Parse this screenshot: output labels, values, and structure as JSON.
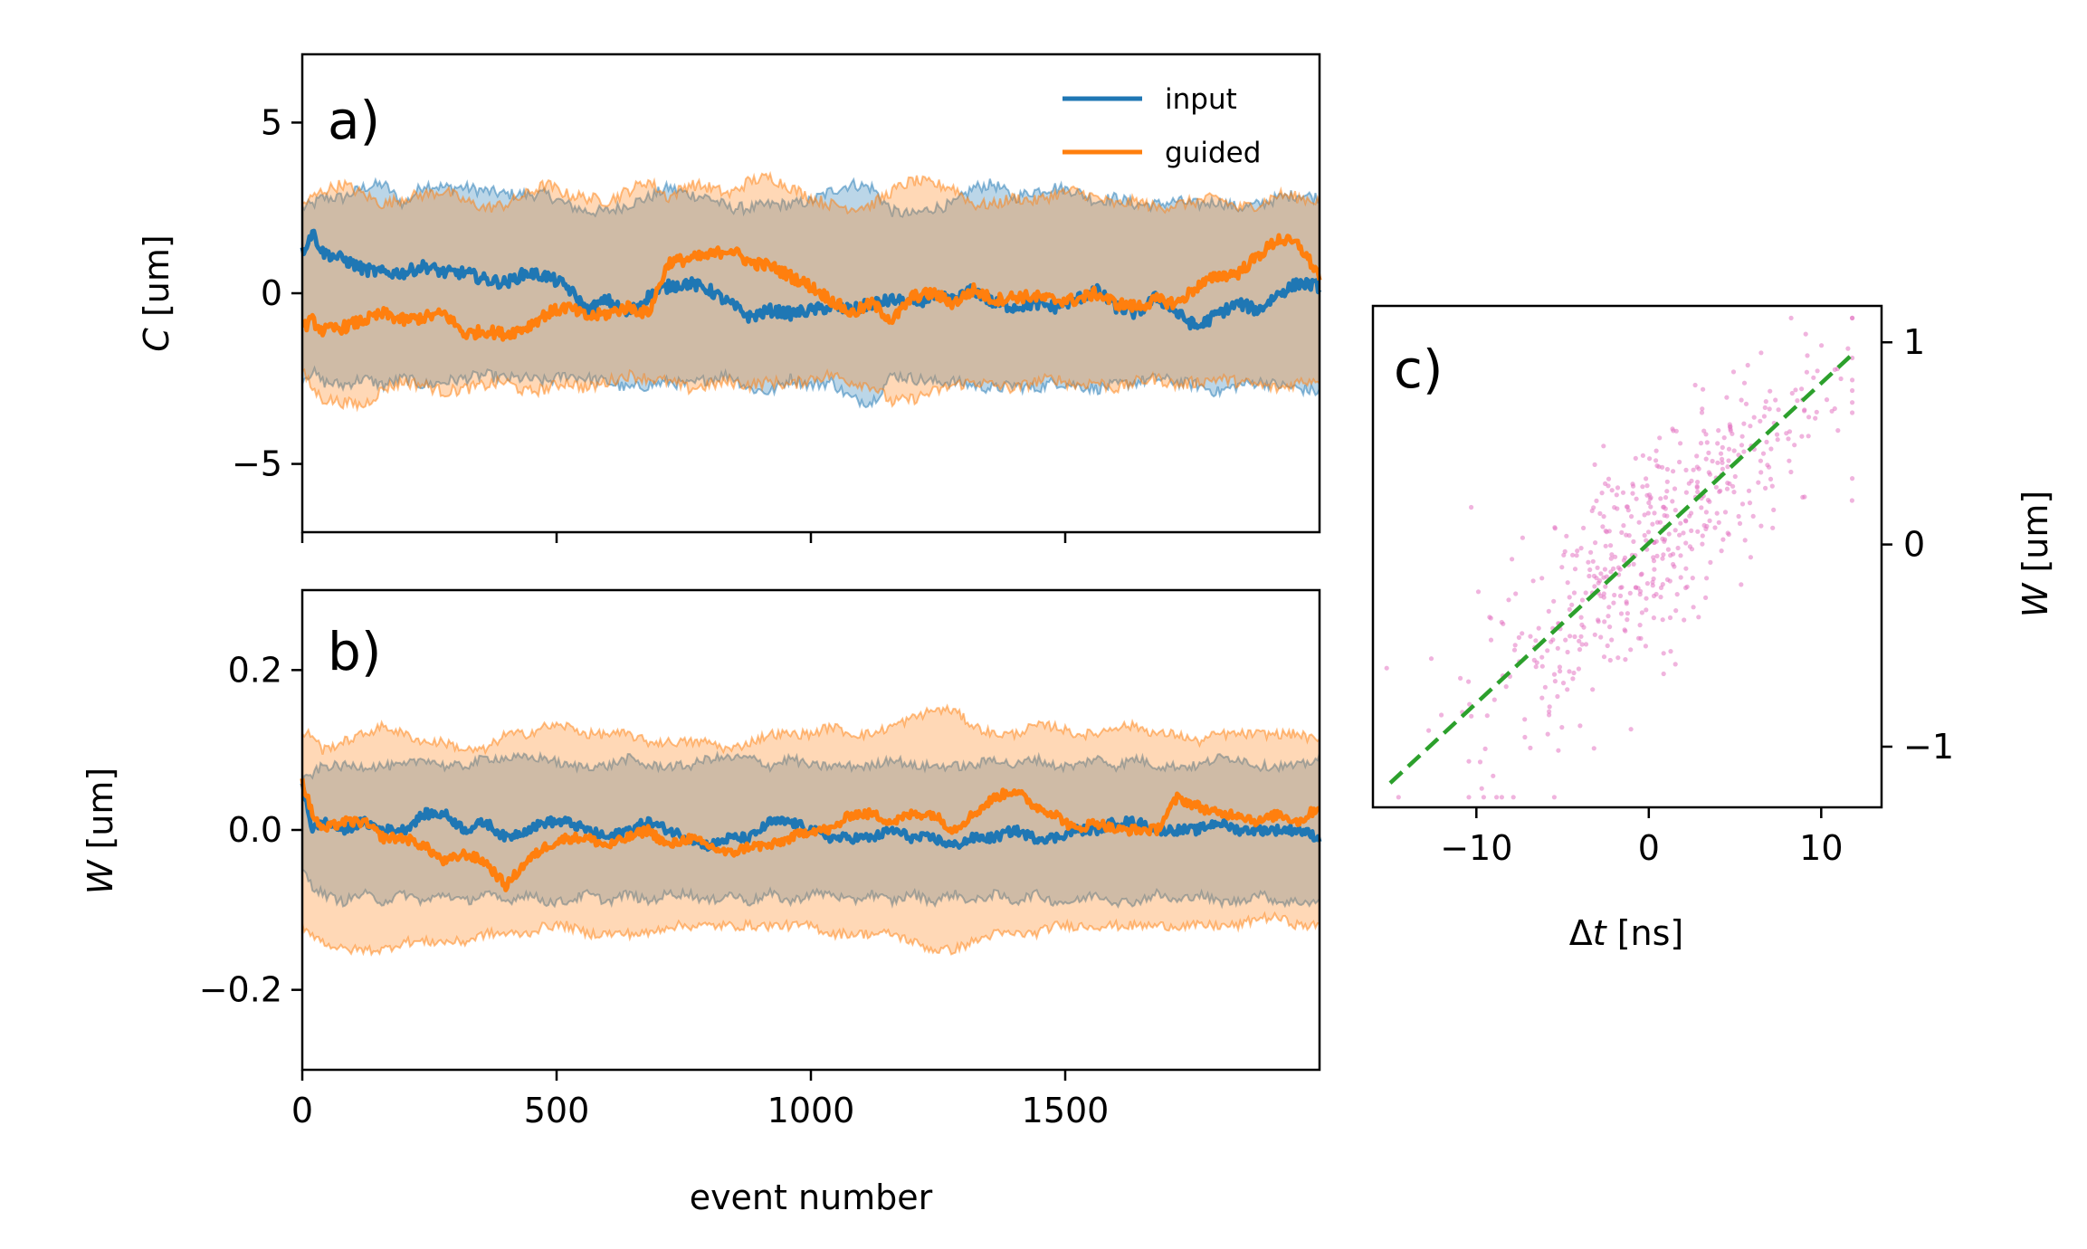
{
  "chart_data": [
    {
      "id": "a",
      "panel_label": "a)",
      "type": "line",
      "ylabel_italic": "C",
      "ylabel_unit": " [um]",
      "xlim": [
        0,
        2000
      ],
      "ylim": [
        -7,
        7
      ],
      "yticks": [
        -5,
        0,
        5
      ],
      "ytick_labels": [
        "−5",
        "0",
        "5"
      ],
      "xticks": [
        0,
        500,
        1000,
        1500
      ],
      "legend": [
        "input",
        "guided"
      ],
      "series": [
        {
          "name": "input",
          "color": "#1f77b4",
          "x": [
            0,
            20,
            40,
            80,
            120,
            160,
            200,
            240,
            280,
            320,
            360,
            400,
            440,
            480,
            520,
            560,
            600,
            640,
            680,
            720,
            760,
            800,
            840,
            880,
            920,
            960,
            1000,
            1040,
            1080,
            1120,
            1160,
            1200,
            1240,
            1280,
            1320,
            1360,
            1400,
            1440,
            1480,
            1520,
            1560,
            1600,
            1640,
            1680,
            1720,
            1760,
            1800,
            1840,
            1880,
            1920,
            1960,
            2000
          ],
          "mean": [
            1.2,
            1.8,
            1.2,
            1.0,
            0.7,
            0.6,
            0.6,
            0.8,
            0.6,
            0.6,
            0.4,
            0.3,
            0.6,
            0.5,
            0.2,
            -0.5,
            -0.2,
            -0.6,
            -0.1,
            0.2,
            0.3,
            0.1,
            -0.3,
            -0.7,
            -0.5,
            -0.6,
            -0.5,
            -0.4,
            -0.5,
            -0.3,
            -0.2,
            -0.3,
            -0.1,
            -0.2,
            0.1,
            -0.3,
            -0.4,
            -0.3,
            -0.4,
            -0.2,
            0.1,
            -0.4,
            -0.6,
            -0.1,
            -0.6,
            -1.0,
            -0.6,
            -0.3,
            -0.5,
            0.0,
            0.3,
            0.2
          ],
          "upper": [
            2.5,
            2.6,
            2.8,
            2.8,
            3.1,
            3.2,
            2.6,
            3.2,
            3.1,
            3.1,
            3.0,
            2.9,
            2.9,
            2.9,
            2.6,
            2.4,
            2.4,
            2.6,
            2.8,
            3.1,
            2.9,
            2.8,
            2.5,
            2.5,
            2.6,
            2.6,
            2.7,
            3.0,
            3.2,
            3.1,
            2.4,
            2.3,
            2.5,
            2.6,
            3.1,
            3.2,
            2.8,
            3.0,
            3.1,
            3.0,
            2.7,
            2.8,
            2.6,
            2.6,
            2.7,
            2.6,
            2.7,
            2.5,
            2.6,
            2.8,
            2.9,
            2.8
          ],
          "lower": [
            -2.5,
            -2.3,
            -2.6,
            -2.7,
            -2.5,
            -2.7,
            -2.5,
            -2.7,
            -2.6,
            -2.5,
            -2.4,
            -2.5,
            -2.5,
            -2.6,
            -2.4,
            -2.5,
            -2.6,
            -2.8,
            -2.7,
            -2.6,
            -2.7,
            -2.5,
            -2.4,
            -2.8,
            -2.9,
            -2.5,
            -2.7,
            -2.6,
            -3.1,
            -3.2,
            -2.4,
            -2.5,
            -2.6,
            -2.6,
            -2.7,
            -2.8,
            -2.7,
            -2.8,
            -2.6,
            -2.7,
            -2.8,
            -2.7,
            -2.6,
            -2.5,
            -2.6,
            -2.7,
            -2.9,
            -2.7,
            -2.6,
            -2.7,
            -2.8,
            -2.9
          ]
        },
        {
          "name": "guided",
          "color": "#ff7f0e",
          "x": [
            0,
            20,
            40,
            80,
            120,
            160,
            200,
            240,
            280,
            320,
            360,
            400,
            440,
            480,
            520,
            560,
            600,
            640,
            680,
            720,
            760,
            800,
            840,
            880,
            920,
            960,
            1000,
            1040,
            1080,
            1120,
            1160,
            1200,
            1240,
            1280,
            1320,
            1360,
            1400,
            1440,
            1480,
            1520,
            1560,
            1600,
            1640,
            1680,
            1720,
            1760,
            1800,
            1840,
            1880,
            1920,
            1960,
            2000
          ],
          "mean": [
            -1.0,
            -0.8,
            -1.1,
            -1.0,
            -0.8,
            -0.6,
            -0.8,
            -0.7,
            -0.6,
            -1.2,
            -1.1,
            -1.2,
            -1.0,
            -0.6,
            -0.4,
            -0.7,
            -0.6,
            -0.4,
            -0.6,
            0.9,
            1.0,
            1.1,
            1.3,
            0.9,
            0.8,
            0.5,
            0.2,
            -0.2,
            -0.6,
            -0.3,
            -0.8,
            -0.1,
            0.0,
            -0.3,
            0.1,
            -0.2,
            -0.1,
            -0.1,
            -0.2,
            -0.2,
            0.0,
            -0.3,
            -0.4,
            -0.2,
            -0.3,
            0.2,
            0.5,
            0.6,
            1.1,
            1.6,
            1.4,
            0.5
          ],
          "upper": [
            2.6,
            2.8,
            3.0,
            3.2,
            2.9,
            2.6,
            2.8,
            2.9,
            3.0,
            2.7,
            2.5,
            2.6,
            2.9,
            3.2,
            2.9,
            2.8,
            2.7,
            3.0,
            3.3,
            2.8,
            3.2,
            3.1,
            2.9,
            3.3,
            3.4,
            3.1,
            2.8,
            2.6,
            2.5,
            2.6,
            3.0,
            3.3,
            3.2,
            3.1,
            2.6,
            2.6,
            2.8,
            2.7,
            2.9,
            3.0,
            2.8,
            2.6,
            2.7,
            2.5,
            2.6,
            2.7,
            2.8,
            2.5,
            2.6,
            2.9,
            2.8,
            2.7
          ],
          "lower": [
            -2.3,
            -2.8,
            -3.1,
            -3.2,
            -3.3,
            -2.8,
            -2.6,
            -2.7,
            -2.9,
            -2.8,
            -2.7,
            -2.6,
            -2.9,
            -2.8,
            -2.6,
            -2.8,
            -2.6,
            -2.4,
            -2.5,
            -2.6,
            -2.8,
            -2.7,
            -2.6,
            -2.7,
            -2.6,
            -2.7,
            -2.5,
            -2.4,
            -2.6,
            -2.7,
            -3.2,
            -3.1,
            -2.9,
            -2.7,
            -2.6,
            -2.7,
            -2.8,
            -2.6,
            -2.5,
            -2.7,
            -2.6,
            -2.8,
            -2.6,
            -2.5,
            -2.7,
            -2.6,
            -2.5,
            -2.6,
            -2.7,
            -2.8,
            -2.6,
            -2.5
          ]
        }
      ]
    },
    {
      "id": "b",
      "panel_label": "b)",
      "type": "line",
      "ylabel_italic": "W",
      "ylabel_unit": " [um]",
      "xlabel": "event number",
      "xlim": [
        0,
        2000
      ],
      "ylim": [
        -0.3,
        0.3
      ],
      "yticks": [
        -0.2,
        0.0,
        0.2
      ],
      "ytick_labels": [
        "−0.2",
        "0.0",
        "0.2"
      ],
      "xticks": [
        0,
        500,
        1000,
        1500
      ],
      "xtick_labels": [
        "0",
        "500",
        "1000",
        "1500"
      ],
      "series": [
        {
          "name": "input",
          "color": "#1f77b4",
          "x": [
            0,
            20,
            40,
            80,
            120,
            160,
            200,
            240,
            280,
            320,
            360,
            400,
            440,
            480,
            520,
            560,
            600,
            640,
            680,
            720,
            760,
            800,
            840,
            880,
            920,
            960,
            1000,
            1040,
            1080,
            1120,
            1160,
            1200,
            1240,
            1280,
            1320,
            1360,
            1400,
            1440,
            1480,
            1520,
            1560,
            1600,
            1640,
            1680,
            1720,
            1760,
            1800,
            1840,
            1880,
            1920,
            1960,
            2000
          ],
          "mean": [
            0.06,
            0.0,
            0.01,
            0.0,
            0.01,
            0.0,
            0.0,
            0.02,
            0.02,
            0.0,
            0.01,
            -0.01,
            0.0,
            0.01,
            0.01,
            0.0,
            -0.01,
            0.0,
            0.01,
            0.0,
            -0.01,
            -0.02,
            -0.01,
            -0.01,
            0.01,
            0.01,
            0.0,
            -0.01,
            -0.01,
            -0.01,
            0.0,
            -0.01,
            -0.01,
            -0.02,
            -0.01,
            -0.01,
            0.0,
            -0.01,
            -0.01,
            0.0,
            0.0,
            0.01,
            0.01,
            0.0,
            0.0,
            0.0,
            0.01,
            0.0,
            0.0,
            0.0,
            0.0,
            -0.01
          ],
          "upper": [
            0.06,
            0.07,
            0.08,
            0.08,
            0.08,
            0.08,
            0.08,
            0.09,
            0.08,
            0.08,
            0.09,
            0.09,
            0.09,
            0.09,
            0.08,
            0.08,
            0.08,
            0.09,
            0.08,
            0.08,
            0.08,
            0.09,
            0.09,
            0.09,
            0.08,
            0.09,
            0.08,
            0.08,
            0.08,
            0.08,
            0.09,
            0.08,
            0.08,
            0.08,
            0.08,
            0.09,
            0.08,
            0.09,
            0.08,
            0.08,
            0.09,
            0.08,
            0.09,
            0.08,
            0.08,
            0.08,
            0.09,
            0.09,
            0.08,
            0.08,
            0.08,
            0.09
          ],
          "lower": [
            -0.05,
            -0.07,
            -0.08,
            -0.09,
            -0.08,
            -0.09,
            -0.08,
            -0.09,
            -0.08,
            -0.09,
            -0.08,
            -0.09,
            -0.08,
            -0.09,
            -0.09,
            -0.08,
            -0.09,
            -0.08,
            -0.09,
            -0.08,
            -0.08,
            -0.09,
            -0.08,
            -0.09,
            -0.08,
            -0.09,
            -0.08,
            -0.08,
            -0.09,
            -0.08,
            -0.09,
            -0.08,
            -0.09,
            -0.08,
            -0.09,
            -0.08,
            -0.09,
            -0.08,
            -0.09,
            -0.09,
            -0.08,
            -0.09,
            -0.09,
            -0.08,
            -0.09,
            -0.08,
            -0.09,
            -0.09,
            -0.08,
            -0.09,
            -0.09,
            -0.09
          ]
        },
        {
          "name": "guided",
          "color": "#ff7f0e",
          "x": [
            0,
            20,
            40,
            80,
            120,
            160,
            200,
            240,
            280,
            320,
            360,
            400,
            440,
            480,
            520,
            560,
            600,
            640,
            680,
            720,
            760,
            800,
            840,
            880,
            920,
            960,
            1000,
            1040,
            1080,
            1120,
            1160,
            1200,
            1240,
            1280,
            1320,
            1360,
            1400,
            1440,
            1480,
            1520,
            1560,
            1600,
            1640,
            1680,
            1720,
            1760,
            1800,
            1840,
            1880,
            1920,
            1960,
            2000
          ],
          "mean": [
            0.06,
            0.02,
            0.0,
            0.01,
            0.01,
            -0.01,
            -0.01,
            -0.02,
            -0.04,
            -0.03,
            -0.04,
            -0.07,
            -0.04,
            -0.02,
            -0.01,
            -0.01,
            -0.02,
            -0.01,
            0.0,
            -0.02,
            -0.01,
            -0.02,
            -0.03,
            -0.02,
            -0.02,
            -0.01,
            0.0,
            0.0,
            0.02,
            0.02,
            0.01,
            0.02,
            0.02,
            0.0,
            0.02,
            0.04,
            0.05,
            0.03,
            0.02,
            0.0,
            0.01,
            0.0,
            0.0,
            0.0,
            0.04,
            0.03,
            0.02,
            0.02,
            0.01,
            0.02,
            0.01,
            0.03
          ],
          "upper": [
            0.12,
            0.12,
            0.1,
            0.11,
            0.12,
            0.13,
            0.12,
            0.11,
            0.11,
            0.1,
            0.1,
            0.12,
            0.12,
            0.13,
            0.13,
            0.12,
            0.12,
            0.12,
            0.11,
            0.11,
            0.11,
            0.11,
            0.1,
            0.11,
            0.12,
            0.12,
            0.12,
            0.13,
            0.12,
            0.12,
            0.13,
            0.14,
            0.15,
            0.15,
            0.13,
            0.12,
            0.12,
            0.13,
            0.13,
            0.12,
            0.12,
            0.13,
            0.13,
            0.12,
            0.12,
            0.11,
            0.12,
            0.12,
            0.12,
            0.12,
            0.12,
            0.11
          ],
          "lower": [
            -0.12,
            -0.13,
            -0.14,
            -0.15,
            -0.15,
            -0.15,
            -0.14,
            -0.14,
            -0.14,
            -0.14,
            -0.13,
            -0.13,
            -0.13,
            -0.12,
            -0.12,
            -0.13,
            -0.13,
            -0.13,
            -0.13,
            -0.12,
            -0.12,
            -0.12,
            -0.12,
            -0.12,
            -0.12,
            -0.12,
            -0.12,
            -0.13,
            -0.13,
            -0.13,
            -0.13,
            -0.14,
            -0.15,
            -0.15,
            -0.14,
            -0.13,
            -0.13,
            -0.13,
            -0.12,
            -0.12,
            -0.12,
            -0.12,
            -0.12,
            -0.12,
            -0.12,
            -0.12,
            -0.12,
            -0.12,
            -0.11,
            -0.11,
            -0.12,
            -0.12
          ]
        }
      ]
    },
    {
      "id": "c",
      "panel_label": "c)",
      "type": "scatter",
      "ylabel_italic": "W",
      "ylabel_unit": " [um]",
      "xlabel_prefix": "Δ",
      "xlabel_italic": "t",
      "xlabel_unit": " [ns]",
      "xlim": [
        -16,
        13.5
      ],
      "ylim": [
        -1.3,
        1.18
      ],
      "xticks": [
        -10,
        0,
        10
      ],
      "xtick_labels": [
        "−10",
        "0",
        "10"
      ],
      "yticks": [
        -1,
        0,
        1
      ],
      "ytick_labels": [
        "−1",
        "0",
        "1"
      ],
      "scatter_color": "#e377c2",
      "n_points": 520,
      "fit_line": {
        "color": "#2ca02c",
        "x": [
          -15,
          11.8
        ],
        "y": [
          -1.18,
          0.94
        ]
      }
    }
  ]
}
